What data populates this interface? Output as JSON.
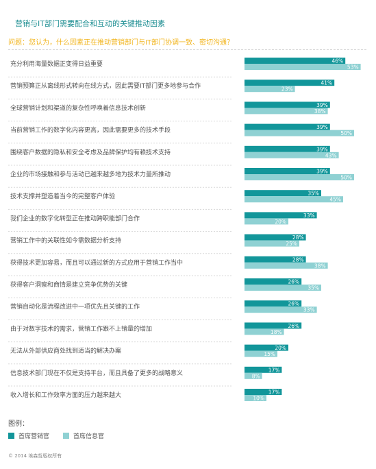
{
  "header": {
    "title": "营销与IT部门需要配合和互动的关键推动因素",
    "question": "问题：您认为，什么因素正在推动营销部门与IT部门协调一致、密切沟通？"
  },
  "chart_data": {
    "type": "bar",
    "orientation": "horizontal",
    "title": "营销与IT部门需要配合和互动的关键推动因素",
    "xlim": [
      0,
      55
    ],
    "unit": "%",
    "categories": [
      "充分利用海量数据正变得日益重要",
      "营销预算正从离线形式转向在线方式，因此需要IT部门更多地参与合作",
      "全球营销计划和渠道的复杂性呼唤着信息技术创新",
      "当前营销工作的数字化内容更高，因此需要更多的技术手段",
      "围绕客户数据的隐私和安全考虑及品牌保护均有赖技术支持",
      "企业的市场接触和参与活动已越来越多地为技术力量所推动",
      "技术支撑并塑造着当今的完整客户体验",
      "我们企业的数字化转型正在推动跨职能部门合作",
      "营销工作中的关联性如今需数据分析支持",
      "获得技术更加容易，而且可以通过新的方式应用于营销工作当中",
      "获得客户洞察和商情是建立竞争优势的关键",
      "营销自动化是流程改进中一项优先且关键的工作",
      "由于对数字技术的需求，营销工作跟不上销量的增加",
      "无法从外部供应商处找到适当的解决办案",
      "信息技术部门现在不仅是支持平台，而且具备了更多的战略意义",
      "收入增长和工作效率方面的压力越来越大"
    ],
    "series": [
      {
        "name": "首席营销官",
        "color": "#12969a",
        "values": [
          46,
          41,
          39,
          39,
          39,
          39,
          35,
          33,
          28,
          28,
          26,
          26,
          26,
          20,
          17,
          17
        ]
      },
      {
        "name": "首席信息官",
        "color": "#8fd1d3",
        "values": [
          53,
          23,
          38,
          50,
          43,
          50,
          45,
          20,
          25,
          38,
          35,
          33,
          18,
          15,
          8,
          10
        ]
      }
    ],
    "data_labels": true,
    "legend_position": "bottom-left",
    "legend_title": "图例："
  },
  "footer": {
    "copyright": "© 2014 埃森哲版权所有"
  }
}
